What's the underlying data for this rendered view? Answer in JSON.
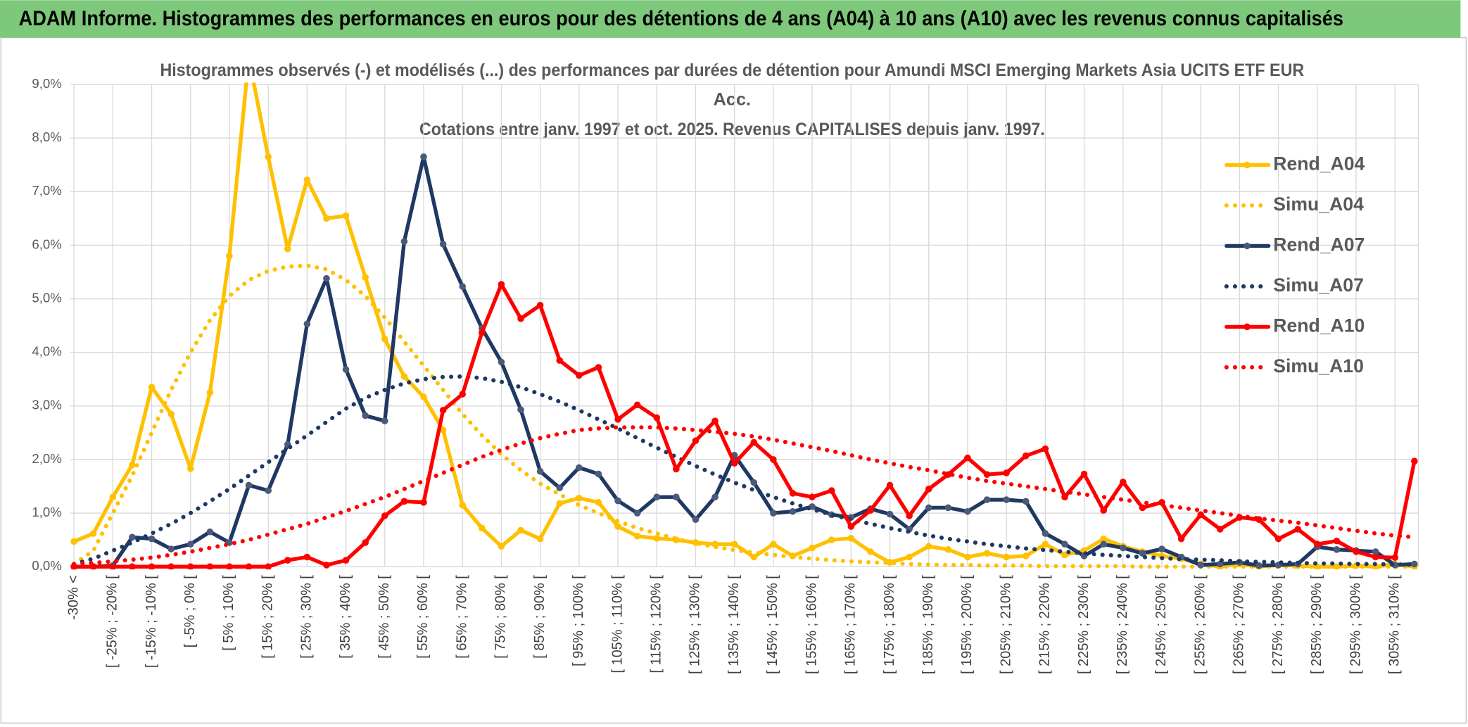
{
  "header": {
    "title": "ADAM Informe. Histogrammes des performances en euros pour des détentions de 4 ans (A04) à 10 ans (A10) avec les revenus connus capitalisés"
  },
  "chart_data": {
    "type": "line",
    "title": [
      "Histogrammes observés (-) et modélisés (...) des performances par durées de détention pour Amundi MSCI Emerging Markets Asia UCITS ETF EUR",
      "Acc.",
      "Cotations entre janv. 1997 et oct. 2025. Revenus CAPITALISES depuis janv. 1997."
    ],
    "categories": [
      "-30% <",
      null,
      "[ -25% ; -20% [",
      null,
      "[ -15% ; -10% [",
      null,
      "[ -5% ; 0% [",
      null,
      "[ 5% ; 10% [",
      null,
      "[ 15% ; 20% [",
      null,
      "[ 25% ; 30% [",
      null,
      "[ 35% ; 40% [",
      null,
      "[ 45% ; 50% [",
      null,
      "[ 55% ; 60% [",
      null,
      "[ 65% ; 70% [",
      null,
      "[ 75% ; 80% [",
      null,
      "[ 85% ; 90% [",
      null,
      "[ 95% ; 100% [",
      null,
      "[ 105% ; 110% [",
      null,
      "[ 115% ; 120% [",
      null,
      "[ 125% ; 130% [",
      null,
      "[ 135% ; 140% [",
      null,
      "[ 145% ; 150% [",
      null,
      "[ 155% ; 160% [",
      null,
      "[ 165% ; 170% [",
      null,
      "[ 175% ; 180% [",
      null,
      "[ 185% ; 190% [",
      null,
      "[ 195% ; 200% [",
      null,
      "[ 205% ; 210% [",
      null,
      "[ 215% ; 220% [",
      null,
      "[ 225% ; 230% [",
      null,
      "[ 235% ; 240% [",
      null,
      "[ 245% ; 250% [",
      null,
      "[ 255% ; 260% [",
      null,
      "[ 265% ; 270% [",
      null,
      "[ 275% ; 280% [",
      null,
      "[ 285% ; 290% [",
      null,
      "[ 295% ; 300% [",
      null,
      "[ 305% ; 310% [",
      null
    ],
    "series": [
      {
        "name": "Rend_A04",
        "color": "#FFC000",
        "dash": "solid",
        "marker": true,
        "values": [
          0.47,
          0.62,
          1.3,
          1.9,
          3.35,
          2.85,
          1.83,
          3.25,
          5.8,
          9.5,
          7.65,
          5.93,
          7.22,
          6.5,
          6.55,
          5.4,
          4.25,
          3.55,
          3.17,
          2.55,
          1.15,
          0.72,
          0.38,
          0.68,
          0.52,
          1.18,
          1.28,
          1.2,
          0.75,
          0.57,
          0.53,
          0.5,
          0.45,
          0.42,
          0.42,
          0.18,
          0.42,
          0.2,
          0.35,
          0.5,
          0.53,
          0.28,
          0.08,
          0.18,
          0.38,
          0.32,
          0.18,
          0.25,
          0.18,
          0.2,
          0.42,
          0.22,
          0.3,
          0.52,
          0.38,
          0.28,
          0.2,
          0.15,
          0.05,
          0,
          0.05,
          0,
          0.03,
          0.02,
          0,
          0,
          0.02,
          0,
          0.05,
          0
        ]
      },
      {
        "name": "Simu_A04",
        "color": "#FFC000",
        "dash": "dotted",
        "marker": false,
        "values": [
          0.05,
          0.3,
          1.0,
          1.7,
          2.5,
          3.3,
          4.0,
          4.6,
          5.05,
          5.35,
          5.52,
          5.6,
          5.62,
          5.55,
          5.35,
          5.05,
          4.65,
          4.2,
          3.75,
          3.3,
          2.85,
          2.45,
          2.1,
          1.8,
          1.55,
          1.35,
          1.15,
          1.0,
          0.85,
          0.72,
          0.62,
          0.52,
          0.44,
          0.37,
          0.31,
          0.26,
          0.22,
          0.18,
          0.15,
          0.12,
          0.1,
          0.08,
          0.07,
          0.05,
          0.04,
          0.03,
          0.03,
          0.02,
          0.02,
          0.02,
          0.01,
          0.01,
          0.01,
          0.01,
          0.01,
          0,
          0,
          0,
          0,
          0,
          0,
          0,
          0,
          0,
          0,
          0,
          0,
          0,
          0,
          0
        ]
      },
      {
        "name": "Rend_A07",
        "color": "#1F3864",
        "marker_color": "#4A5A78",
        "dash": "solid",
        "marker": true,
        "values": [
          0,
          0,
          0.02,
          0.55,
          0.52,
          0.33,
          0.42,
          0.65,
          0.45,
          1.52,
          1.42,
          2.28,
          4.53,
          5.38,
          3.68,
          2.82,
          2.72,
          6.07,
          7.65,
          6.02,
          5.23,
          4.45,
          3.82,
          2.93,
          1.78,
          1.47,
          1.85,
          1.73,
          1.23,
          1.0,
          1.3,
          1.3,
          0.88,
          1.3,
          2.08,
          1.57,
          1.0,
          1.03,
          1.12,
          0.97,
          0.92,
          1.08,
          0.98,
          0.7,
          1.1,
          1.1,
          1.03,
          1.25,
          1.25,
          1.22,
          0.62,
          0.42,
          0.2,
          0.42,
          0.35,
          0.25,
          0.33,
          0.18,
          0.03,
          0.05,
          0.08,
          0.02,
          0.03,
          0.05,
          0.37,
          0.32,
          0.3,
          0.28,
          0.03,
          0.05
        ]
      },
      {
        "name": "Simu_A07",
        "color": "#1F3864",
        "dash": "dotted",
        "marker": false,
        "values": [
          0.05,
          0.15,
          0.3,
          0.45,
          0.62,
          0.8,
          1.0,
          1.22,
          1.45,
          1.7,
          1.95,
          2.2,
          2.45,
          2.7,
          2.95,
          3.15,
          3.3,
          3.42,
          3.5,
          3.54,
          3.55,
          3.52,
          3.45,
          3.35,
          3.22,
          3.08,
          2.92,
          2.75,
          2.58,
          2.4,
          2.22,
          2.05,
          1.88,
          1.72,
          1.57,
          1.43,
          1.3,
          1.18,
          1.07,
          0.97,
          0.88,
          0.8,
          0.72,
          0.65,
          0.58,
          0.52,
          0.47,
          0.42,
          0.38,
          0.34,
          0.31,
          0.28,
          0.25,
          0.22,
          0.2,
          0.18,
          0.16,
          0.14,
          0.13,
          0.12,
          0.1,
          0.09,
          0.08,
          0.07,
          0.06,
          0.06,
          0.05,
          0.05,
          0.04,
          0.04
        ]
      },
      {
        "name": "Rend_A10",
        "color": "#FF0000",
        "dash": "solid",
        "marker": true,
        "values": [
          0,
          0,
          0,
          0,
          0,
          0,
          0,
          0,
          0,
          0,
          0,
          0.12,
          0.18,
          0.03,
          0.12,
          0.45,
          0.95,
          1.22,
          1.2,
          2.92,
          3.22,
          4.37,
          5.27,
          4.63,
          4.88,
          3.85,
          3.57,
          3.72,
          2.75,
          3.02,
          2.78,
          1.82,
          2.35,
          2.72,
          1.93,
          2.32,
          2.0,
          1.37,
          1.3,
          1.42,
          0.75,
          1.05,
          1.52,
          0.95,
          1.45,
          1.72,
          2.03,
          1.72,
          1.75,
          2.07,
          2.2,
          1.3,
          1.73,
          1.05,
          1.58,
          1.1,
          1.2,
          0.52,
          0.97,
          0.7,
          0.92,
          0.88,
          0.52,
          0.7,
          0.42,
          0.48,
          0.28,
          0.18,
          0.17,
          1.97
        ]
      },
      {
        "name": "Simu_A10",
        "color": "#FF0000",
        "dash": "dotted",
        "marker": false,
        "values": [
          0.05,
          0.07,
          0.1,
          0.13,
          0.17,
          0.22,
          0.28,
          0.35,
          0.42,
          0.5,
          0.6,
          0.7,
          0.8,
          0.92,
          1.04,
          1.17,
          1.3,
          1.45,
          1.6,
          1.75,
          1.9,
          2.05,
          2.18,
          2.3,
          2.4,
          2.48,
          2.55,
          2.58,
          2.6,
          2.6,
          2.6,
          2.58,
          2.55,
          2.52,
          2.48,
          2.43,
          2.37,
          2.3,
          2.23,
          2.16,
          2.08,
          2.0,
          1.93,
          1.86,
          1.8,
          1.73,
          1.66,
          1.6,
          1.55,
          1.5,
          1.45,
          1.4,
          1.35,
          1.3,
          1.25,
          1.2,
          1.15,
          1.1,
          1.05,
          1.0,
          0.95,
          0.9,
          0.86,
          0.82,
          0.77,
          0.72,
          0.67,
          0.62,
          0.58,
          0.55
        ]
      }
    ],
    "ylim": [
      0,
      9
    ],
    "yticks": [
      {
        "value": 0,
        "label": "0,0%"
      },
      {
        "value": 1,
        "label": "1,0%"
      },
      {
        "value": 2,
        "label": "2,0%"
      },
      {
        "value": 3,
        "label": "3,0%"
      },
      {
        "value": 4,
        "label": "4,0%"
      },
      {
        "value": 5,
        "label": "5,0%"
      },
      {
        "value": 6,
        "label": "6,0%"
      },
      {
        "value": 7,
        "label": "7,0%"
      },
      {
        "value": 8,
        "label": "8,0%"
      },
      {
        "value": 9,
        "label": "9,0%"
      }
    ],
    "grid": true,
    "legend": "right"
  }
}
